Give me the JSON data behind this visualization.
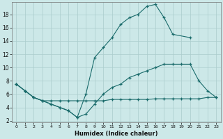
{
  "xlabel": "Humidex (Indice chaleur)",
  "bg_color": "#cce8e8",
  "grid_color": "#aacccc",
  "line_color": "#1a6b6b",
  "xlim": [
    -0.5,
    23.5
  ],
  "ylim": [
    1.8,
    19.8
  ],
  "xticks": [
    0,
    1,
    2,
    3,
    4,
    5,
    6,
    7,
    8,
    9,
    10,
    11,
    12,
    13,
    14,
    15,
    16,
    17,
    18,
    19,
    20,
    21,
    22,
    23
  ],
  "yticks": [
    2,
    4,
    6,
    8,
    10,
    12,
    14,
    16,
    18
  ],
  "line1": {
    "x": [
      0,
      1,
      2,
      3,
      4,
      5,
      6,
      7,
      8,
      9,
      10,
      11,
      12,
      13,
      14,
      15,
      16,
      17,
      18,
      20
    ],
    "y": [
      7.5,
      6.5,
      5.5,
      5.0,
      4.5,
      4.0,
      3.5,
      2.5,
      6.0,
      11.5,
      13.0,
      14.5,
      16.5,
      17.5,
      18.0,
      19.2,
      19.5,
      17.5,
      15.0,
      14.5
    ]
  },
  "line2": {
    "x": [
      0,
      1,
      2,
      3,
      4,
      5,
      6,
      7,
      8,
      9,
      10,
      11,
      12,
      13,
      14,
      15,
      16,
      17,
      18,
      19,
      20,
      21,
      22,
      23
    ],
    "y": [
      7.5,
      6.5,
      5.5,
      5.0,
      4.5,
      4.0,
      3.5,
      2.5,
      3.0,
      4.5,
      6.0,
      7.0,
      7.5,
      8.5,
      9.0,
      9.5,
      10.0,
      10.5,
      10.5,
      10.5,
      10.5,
      8.0,
      6.5,
      5.5
    ]
  },
  "line3": {
    "x": [
      0,
      1,
      2,
      3,
      4,
      5,
      6,
      7,
      8,
      9,
      10,
      11,
      12,
      13,
      14,
      15,
      16,
      17,
      18,
      19,
      20,
      21,
      22,
      23
    ],
    "y": [
      7.5,
      6.5,
      5.5,
      5.0,
      5.0,
      5.0,
      5.0,
      5.0,
      5.0,
      5.0,
      5.0,
      5.2,
      5.2,
      5.2,
      5.2,
      5.2,
      5.3,
      5.3,
      5.3,
      5.3,
      5.3,
      5.3,
      5.5,
      5.5
    ]
  }
}
